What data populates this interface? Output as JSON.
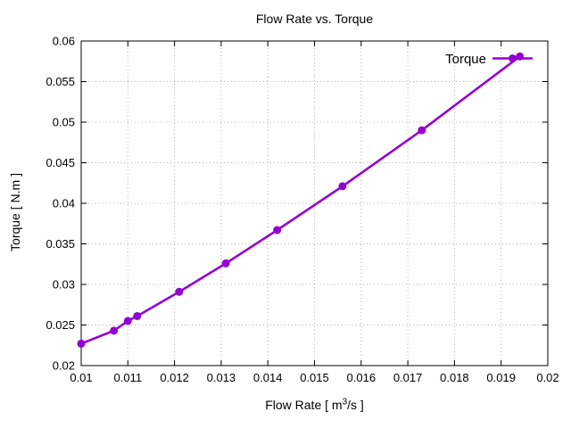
{
  "window": {
    "background": "#ffffff"
  },
  "chart_data": {
    "type": "line",
    "style": "linespoints",
    "title": "Flow Rate vs. Torque",
    "xlabel": {
      "prefix": "Flow Rate [ m",
      "sup": "3",
      "suffix": "/s ]"
    },
    "ylabel": "Torque [ N.m ]",
    "legend": {
      "label": "Torque",
      "position": "top-right",
      "border": false
    },
    "series": [
      {
        "name": "Torque",
        "color": "#9400D3",
        "marker": "filled-circle",
        "x": [
          0.01,
          0.0107,
          0.011,
          0.0112,
          0.0121,
          0.0131,
          0.0142,
          0.0156,
          0.0173,
          0.0194
        ],
        "y": [
          0.0227,
          0.0243,
          0.0255,
          0.0261,
          0.0291,
          0.0326,
          0.0367,
          0.0421,
          0.049,
          0.0581
        ]
      }
    ],
    "xlim": [
      0.01,
      0.02
    ],
    "ylim": [
      0.02,
      0.06
    ],
    "xticks": {
      "values": [
        0.01,
        0.011,
        0.012,
        0.013,
        0.014,
        0.015,
        0.016,
        0.017,
        0.018,
        0.019,
        0.02
      ],
      "labels": [
        "0.01",
        "0.011",
        "0.012",
        "0.013",
        "0.014",
        "0.015",
        "0.016",
        "0.017",
        "0.018",
        "0.019",
        "0.02"
      ]
    },
    "yticks": {
      "values": [
        0.02,
        0.025,
        0.03,
        0.035,
        0.04,
        0.045,
        0.05,
        0.055,
        0.06
      ],
      "labels": [
        "0.02",
        "0.025",
        "0.03",
        "0.035",
        "0.04",
        "0.045",
        "0.05",
        "0.055",
        "0.06"
      ]
    },
    "grid": true,
    "grid_style": "dotted",
    "grid_color": "#b0b0b0",
    "axis_color": "#000000",
    "text_color": "#000000"
  }
}
